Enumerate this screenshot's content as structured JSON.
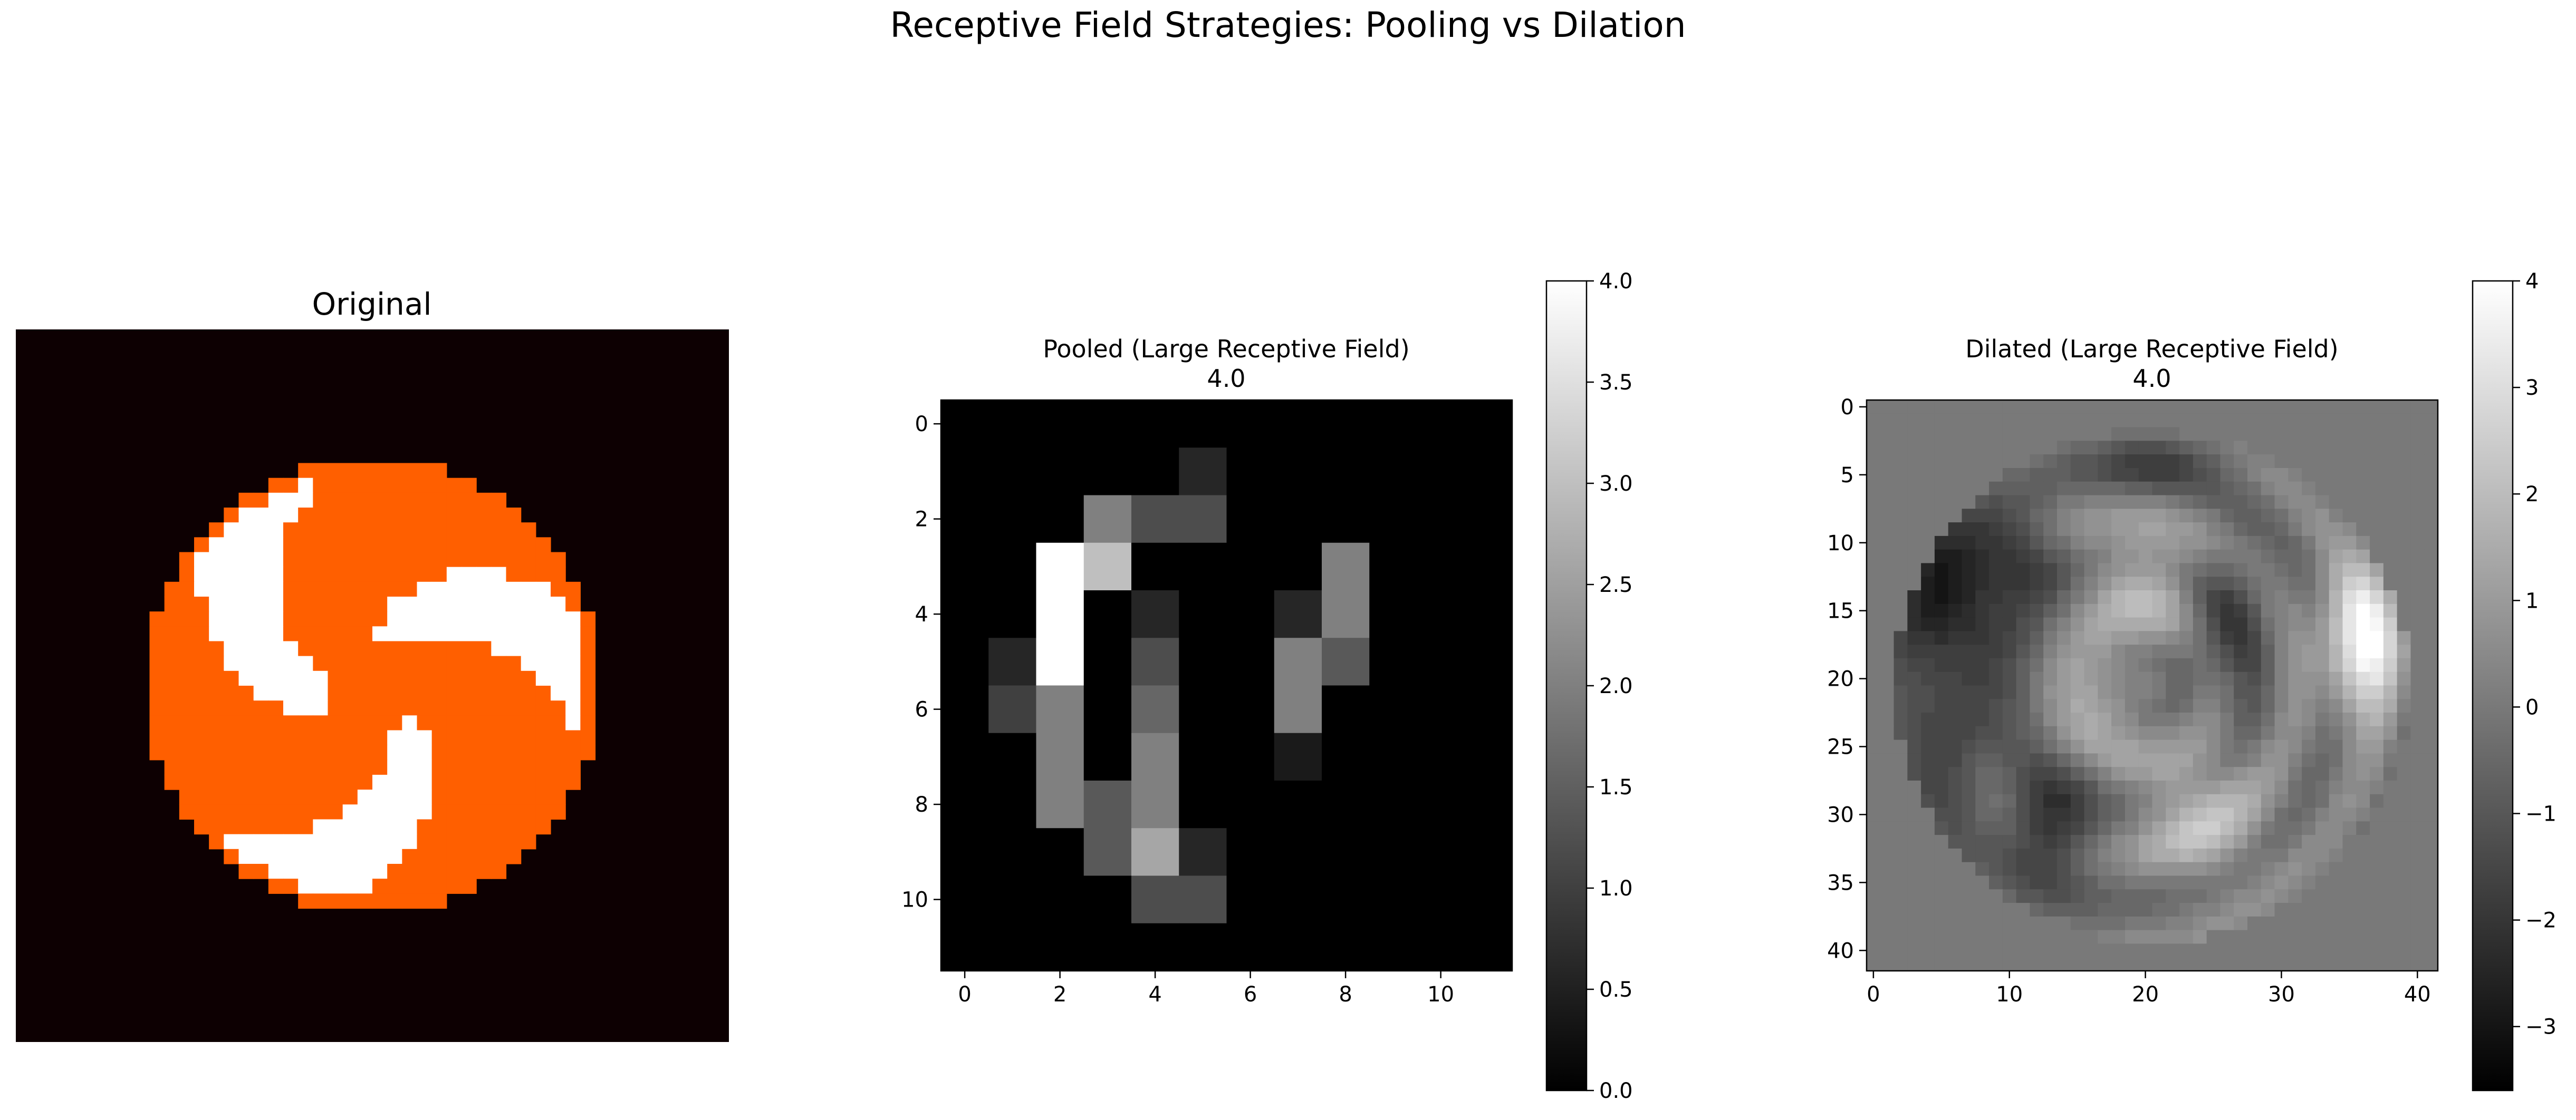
{
  "figure": {
    "suptitle": "Receptive Field Strategies: Pooling vs Dilation"
  },
  "colors": {
    "background": "#0d0002",
    "orange": "#ff5f00",
    "white": "#ffffff"
  },
  "chart_data": [
    {
      "type": "heatmap",
      "title": "Original",
      "colormap": "hot",
      "grid_size": 48,
      "axes_visible": false,
      "content": "circle pinwheel with three white blades on orange disc"
    },
    {
      "type": "heatmap",
      "title": "Pooled (Large Receptive Field)",
      "subtitle": "4.0",
      "colormap": "gray",
      "xlim": [
        -0.5,
        11.5
      ],
      "ylim": [
        11.5,
        -0.5
      ],
      "xticks": [
        "0",
        "2",
        "4",
        "6",
        "8",
        "10"
      ],
      "yticks": [
        "0",
        "2",
        "4",
        "6",
        "8",
        "10"
      ],
      "colorbar": {
        "min": 0.0,
        "max": 4.0,
        "ticks": [
          "0.0",
          "0.5",
          "1.0",
          "1.5",
          "2.0",
          "2.5",
          "3.0",
          "3.5",
          "4.0"
        ]
      },
      "values": [
        [
          0,
          0,
          0,
          0,
          0,
          0,
          0,
          0,
          0,
          0,
          0,
          0
        ],
        [
          0,
          0,
          0,
          0,
          0,
          0.6,
          0,
          0,
          0,
          0,
          0,
          0
        ],
        [
          0,
          0,
          0,
          2,
          1.2,
          1.2,
          0,
          0,
          0,
          0,
          0,
          0
        ],
        [
          0,
          0,
          4,
          3,
          0,
          0,
          0,
          0,
          2,
          0,
          0,
          0
        ],
        [
          0,
          0,
          4,
          0,
          0.6,
          0,
          0,
          0.6,
          2,
          0,
          0,
          0
        ],
        [
          0,
          0.6,
          4,
          0,
          1.2,
          0,
          0,
          2,
          1.4,
          0,
          0,
          0
        ],
        [
          0,
          1,
          2,
          0,
          1.6,
          0,
          0,
          2,
          0,
          0,
          0,
          0
        ],
        [
          0,
          0,
          2,
          0,
          2,
          0,
          0,
          0.4,
          0,
          0,
          0,
          0
        ],
        [
          0,
          0,
          2,
          1.4,
          2,
          0,
          0,
          0,
          0,
          0,
          0,
          0
        ],
        [
          0,
          0,
          0,
          1.4,
          2.6,
          0.6,
          0,
          0,
          0,
          0,
          0,
          0
        ],
        [
          0,
          0,
          0,
          0,
          1.2,
          1.2,
          0,
          0,
          0,
          0,
          0,
          0
        ],
        [
          0,
          0,
          0,
          0,
          0,
          0,
          0,
          0,
          0,
          0,
          0,
          0
        ]
      ]
    },
    {
      "type": "heatmap",
      "title": "Dilated (Large Receptive Field)",
      "subtitle": "4.0",
      "colormap": "gray",
      "xlim": [
        -0.5,
        41.5
      ],
      "ylim": [
        41.5,
        -0.5
      ],
      "xticks": [
        "0",
        "10",
        "20",
        "30",
        "40"
      ],
      "yticks": [
        "0",
        "5",
        "10",
        "15",
        "20",
        "25",
        "30",
        "35",
        "40"
      ],
      "colorbar": {
        "min": -3.6,
        "max": 4.0,
        "ticks": [
          "−3",
          "−2",
          "−1",
          "0",
          "1",
          "2",
          "3",
          "4"
        ]
      },
      "grid_size": 42,
      "content": "dilated convolution response; dark arcs on left side, bright crescent on right"
    }
  ]
}
